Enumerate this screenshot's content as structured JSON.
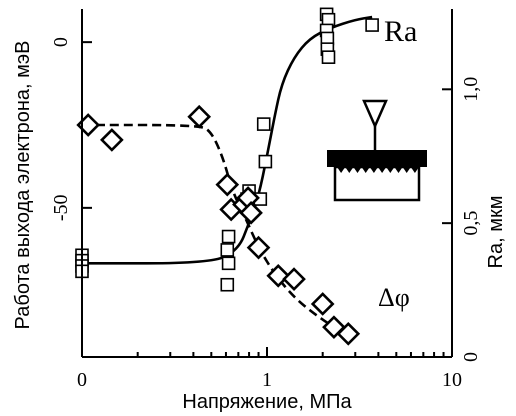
{
  "chart_data": {
    "type": "scatter",
    "xlabel": "Напряжение, МПа",
    "ylabel_left": "Работа выхода электрона, мэВ",
    "ylabel_right": "Ra, мкм",
    "x_scale": "log",
    "xlim": [
      0.1,
      10
    ],
    "x_ticks": [
      {
        "value": 0.1,
        "label": "0"
      },
      {
        "value": 1,
        "label": "1"
      },
      {
        "value": 10,
        "label": "10"
      }
    ],
    "ylim_left": [
      -95,
      10
    ],
    "ylim_right": [
      0,
      1.3
    ],
    "y_left_ticks": [
      {
        "value": 0,
        "label": "0"
      },
      {
        "value": -50,
        "label": "-50"
      }
    ],
    "y_right_ticks": [
      {
        "value": 1.0,
        "label": "1,0"
      },
      {
        "value": 0.5,
        "label": "0,5"
      },
      {
        "value": 0,
        "label": "0"
      }
    ],
    "grid": false,
    "series": [
      {
        "name": "Ra",
        "axis": "right",
        "marker": "square",
        "points": [
          {
            "x": 0.1,
            "y": 0.38
          },
          {
            "x": 0.1,
            "y": 0.36
          },
          {
            "x": 0.1,
            "y": 0.34
          },
          {
            "x": 0.1,
            "y": 0.32
          },
          {
            "x": 0.62,
            "y": 0.45
          },
          {
            "x": 0.61,
            "y": 0.4
          },
          {
            "x": 0.62,
            "y": 0.35
          },
          {
            "x": 0.61,
            "y": 0.27
          },
          {
            "x": 0.78,
            "y": 0.59
          },
          {
            "x": 0.8,
            "y": 0.62
          },
          {
            "x": 0.92,
            "y": 0.59
          },
          {
            "x": 0.96,
            "y": 0.87
          },
          {
            "x": 0.98,
            "y": 0.73
          },
          {
            "x": 2.1,
            "y": 1.28
          },
          {
            "x": 2.15,
            "y": 1.26
          },
          {
            "x": 2.1,
            "y": 1.22
          },
          {
            "x": 2.12,
            "y": 1.19
          },
          {
            "x": 2.12,
            "y": 1.15
          },
          {
            "x": 2.15,
            "y": 1.12
          },
          {
            "x": 3.7,
            "y": 1.24
          }
        ],
        "fit": "solid",
        "fit_points": [
          {
            "x": 0.1,
            "y": 0.35
          },
          {
            "x": 0.5,
            "y": 0.35
          },
          {
            "x": 0.7,
            "y": 0.4
          },
          {
            "x": 0.8,
            "y": 0.5
          },
          {
            "x": 0.9,
            "y": 0.6
          },
          {
            "x": 1.0,
            "y": 0.75
          },
          {
            "x": 1.1,
            "y": 0.9
          },
          {
            "x": 1.2,
            "y": 1.02
          },
          {
            "x": 1.4,
            "y": 1.12
          },
          {
            "x": 1.7,
            "y": 1.19
          },
          {
            "x": 2.2,
            "y": 1.23
          },
          {
            "x": 3.0,
            "y": 1.26
          },
          {
            "x": 3.7,
            "y": 1.27
          }
        ]
      },
      {
        "name": "Δφ",
        "axis": "left",
        "marker": "diamond",
        "points": [
          {
            "x": 0.108,
            "y": -25
          },
          {
            "x": 0.145,
            "y": -29.5
          },
          {
            "x": 0.43,
            "y": -22.5
          },
          {
            "x": 0.61,
            "y": -43
          },
          {
            "x": 0.64,
            "y": -50.5
          },
          {
            "x": 0.75,
            "y": -49
          },
          {
            "x": 0.79,
            "y": -47
          },
          {
            "x": 0.82,
            "y": -51.5
          },
          {
            "x": 0.9,
            "y": -62
          },
          {
            "x": 1.15,
            "y": -70.5
          },
          {
            "x": 1.4,
            "y": -71.5
          },
          {
            "x": 2.0,
            "y": -79
          },
          {
            "x": 2.3,
            "y": -86
          },
          {
            "x": 2.75,
            "y": -88
          }
        ],
        "fit": "dashed",
        "fit_points": [
          {
            "x": 0.1,
            "y": -25
          },
          {
            "x": 0.43,
            "y": -25
          },
          {
            "x": 0.5,
            "y": -27
          },
          {
            "x": 0.58,
            "y": -35
          },
          {
            "x": 0.65,
            "y": -45
          },
          {
            "x": 0.75,
            "y": -52
          },
          {
            "x": 0.9,
            "y": -62
          },
          {
            "x": 1.1,
            "y": -70
          },
          {
            "x": 1.4,
            "y": -77
          },
          {
            "x": 1.8,
            "y": -82
          },
          {
            "x": 2.3,
            "y": -86
          },
          {
            "x": 2.75,
            "y": -88
          }
        ]
      }
    ],
    "annotations": [
      "Ra",
      "Δφ"
    ]
  }
}
